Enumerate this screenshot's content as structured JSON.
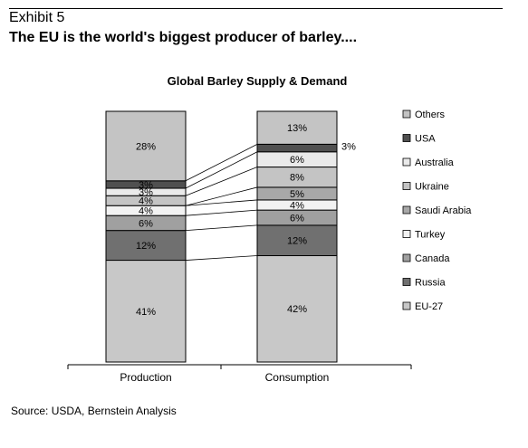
{
  "exhibit_label": "Exhibit 5",
  "headline": "The EU is the world's biggest producer of barley....",
  "source": "Source: USDA, Bernstein Analysis",
  "chart_data": {
    "type": "bar",
    "stacked": true,
    "title": "Global Barley Supply & Demand",
    "categories": [
      "Production",
      "Consumption"
    ],
    "ylim": [
      0,
      100
    ],
    "series": [
      {
        "name": "EU-27",
        "values": [
          41,
          42
        ],
        "labels": [
          "41%",
          "42%"
        ],
        "color": "#c8c8c8"
      },
      {
        "name": "Russia",
        "values": [
          12,
          12
        ],
        "labels": [
          "12%",
          "12%"
        ],
        "color": "#707070"
      },
      {
        "name": "Canada",
        "values": [
          6,
          6
        ],
        "labels": [
          "6%",
          "6%"
        ],
        "color": "#a0a0a0"
      },
      {
        "name": "Turkey",
        "values": [
          4,
          4
        ],
        "labels": [
          "4%",
          "4%"
        ],
        "color": "#f2f2f2"
      },
      {
        "name": "Saudi Arabia",
        "values": [
          0,
          5
        ],
        "labels": [
          "",
          "5%"
        ],
        "color": "#a8a8a8"
      },
      {
        "name": "Ukraine",
        "values": [
          4,
          8
        ],
        "labels": [
          "4%",
          "8%"
        ],
        "color": "#c4c4c4"
      },
      {
        "name": "Australia",
        "values": [
          3,
          6
        ],
        "labels": [
          "3%",
          "6%"
        ],
        "color": "#eaeaea"
      },
      {
        "name": "USA",
        "values": [
          3,
          3
        ],
        "labels": [
          "3%",
          "3%"
        ],
        "color": "#505050"
      },
      {
        "name": "Others",
        "values": [
          28,
          13
        ],
        "labels": [
          "28%",
          "13%"
        ],
        "color": "#c4c4c4"
      }
    ],
    "legend": {
      "position": "right",
      "order": [
        "Others",
        "USA",
        "Australia",
        "Ukraine",
        "Saudi Arabia",
        "Turkey",
        "Canada",
        "Russia",
        "EU-27"
      ]
    },
    "connector_lines": true,
    "grid": false
  }
}
